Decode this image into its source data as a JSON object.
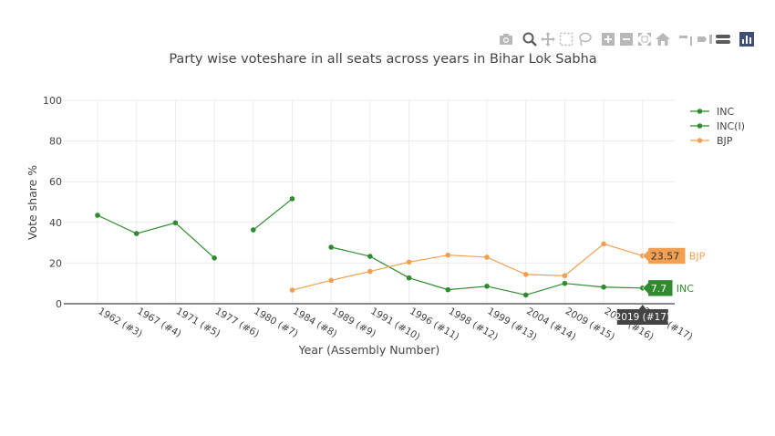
{
  "toolbar": {
    "icons": [
      "camera-icon",
      "zoom-icon",
      "pan-icon",
      "box-select-icon",
      "lasso-icon",
      "zoom-in-icon",
      "zoom-out-icon",
      "autoscale-icon",
      "home-icon",
      "spike-lines-icon",
      "hover-closest-icon",
      "hover-compare-icon",
      "plotly-logo-icon"
    ]
  },
  "chart_data": {
    "type": "line",
    "title": "Party wise voteshare in all seats across years in Bihar Lok Sabha",
    "xlabel": "Year (Assembly Number)",
    "ylabel": "Vote share %",
    "ylim": [
      0,
      100
    ],
    "yticks": [
      0,
      20,
      40,
      60,
      80,
      100
    ],
    "categories": [
      "1962 (#3)",
      "1967 (#4)",
      "1971 (#5)",
      "1977 (#6)",
      "1980 (#7)",
      "1984 (#8)",
      "1989 (#9)",
      "1991 (#10)",
      "1996 (#11)",
      "1998 (#12)",
      "1999 (#13)",
      "2004 (#14)",
      "2009 (#15)",
      "2014 (#16)",
      "2019 (#17)"
    ],
    "series": [
      {
        "name": "INC",
        "color": "#2e8b2e",
        "values": [
          43.5,
          34.5,
          39.8,
          22.5,
          null,
          null,
          27.8,
          23.3,
          12.7,
          6.9,
          8.6,
          4.3,
          10.0,
          8.2,
          7.7
        ]
      },
      {
        "name": "INC(I)",
        "color": "#2e8b2e",
        "values": [
          null,
          null,
          null,
          null,
          36.3,
          51.6,
          null,
          null,
          null,
          null,
          null,
          null,
          null,
          null,
          null
        ]
      },
      {
        "name": "BJP",
        "color": "#f0a050",
        "values": [
          null,
          null,
          null,
          null,
          null,
          6.7,
          11.5,
          15.9,
          20.5,
          23.9,
          22.9,
          14.4,
          13.8,
          29.4,
          23.57
        ]
      }
    ],
    "legend_position": "top-right",
    "hover": {
      "x_label": "2019 (#17)",
      "labels": [
        {
          "series": "INC",
          "value_text": "7.7",
          "name_text": "INC"
        },
        {
          "series": "BJP",
          "value_text": "23.57",
          "name_text": "BJP"
        }
      ]
    }
  }
}
